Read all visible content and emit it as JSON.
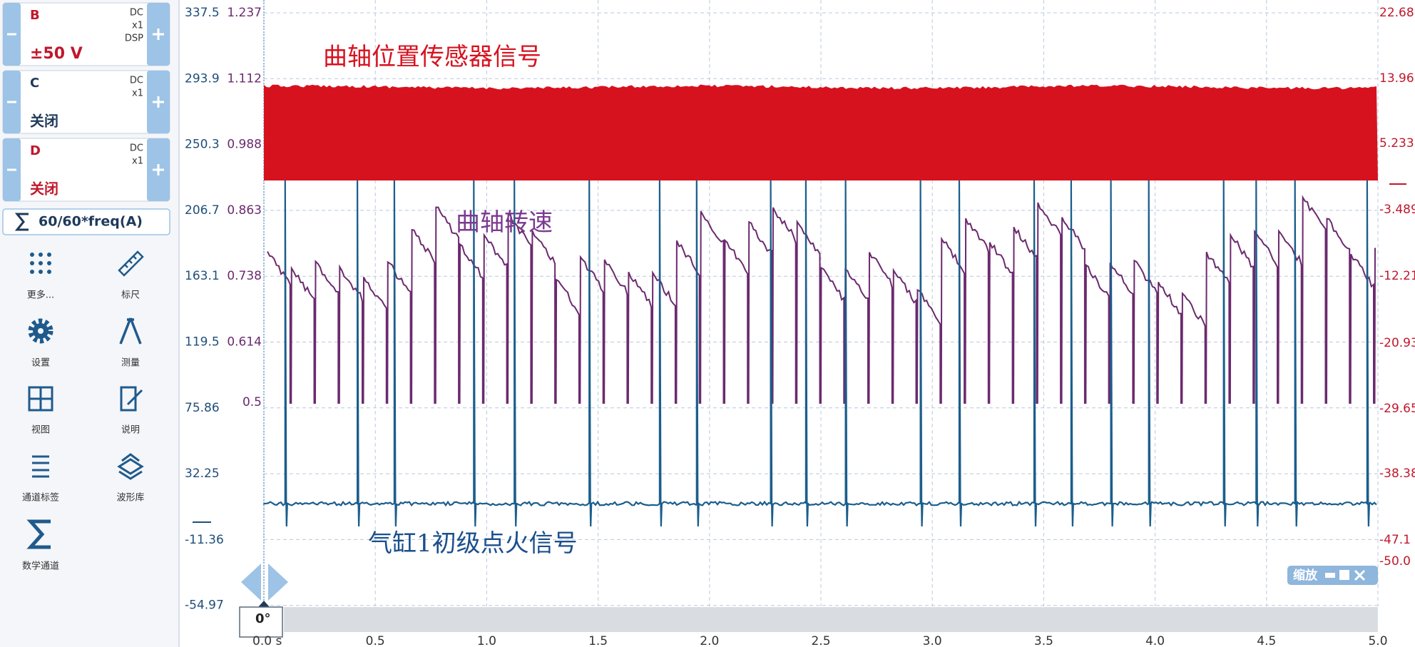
{
  "channels": [
    {
      "name": "B",
      "coupling": "DC",
      "scale": "x1",
      "extra": "DSP",
      "range": "±50 V"
    },
    {
      "name": "C",
      "coupling": "DC",
      "scale": "x1",
      "range": "关闭"
    },
    {
      "name": "D",
      "coupling": "DC",
      "scale": "x1",
      "range": "关闭"
    }
  ],
  "math_channel": "60/60*freq(A)",
  "tools": [
    "更多...",
    "标尺",
    "设置",
    "测量",
    "视图",
    "说明",
    "通道标签",
    "波形库",
    "数学通道"
  ],
  "left_axis_outer": [
    "337.5",
    "293.9",
    "250.3",
    "206.7",
    "163.1",
    "119.5",
    "75.86",
    "32.25",
    "-11.36",
    "-54.97"
  ],
  "left_axis_inner": [
    "1.237",
    "1.112",
    "0.988",
    "0.863",
    "0.738",
    "0.614",
    "0.5"
  ],
  "right_axis": [
    "22.68",
    "13.96",
    "5.233",
    "-3.489",
    "-12.21",
    "-20.93",
    "-29.65",
    "-38.38",
    "-47.1",
    "-50.0"
  ],
  "x_axis": [
    "0.0 s",
    "0.5",
    "1.0",
    "1.5",
    "2.0",
    "2.5",
    "3.0",
    "3.5",
    "4.0",
    "4.5",
    "5.0"
  ],
  "annotations": [
    "曲轴位置传感器信号",
    "曲轴转速",
    "气缸1初级点火信号"
  ],
  "zoom_label": "缩放",
  "trigger_marker": "0°"
}
